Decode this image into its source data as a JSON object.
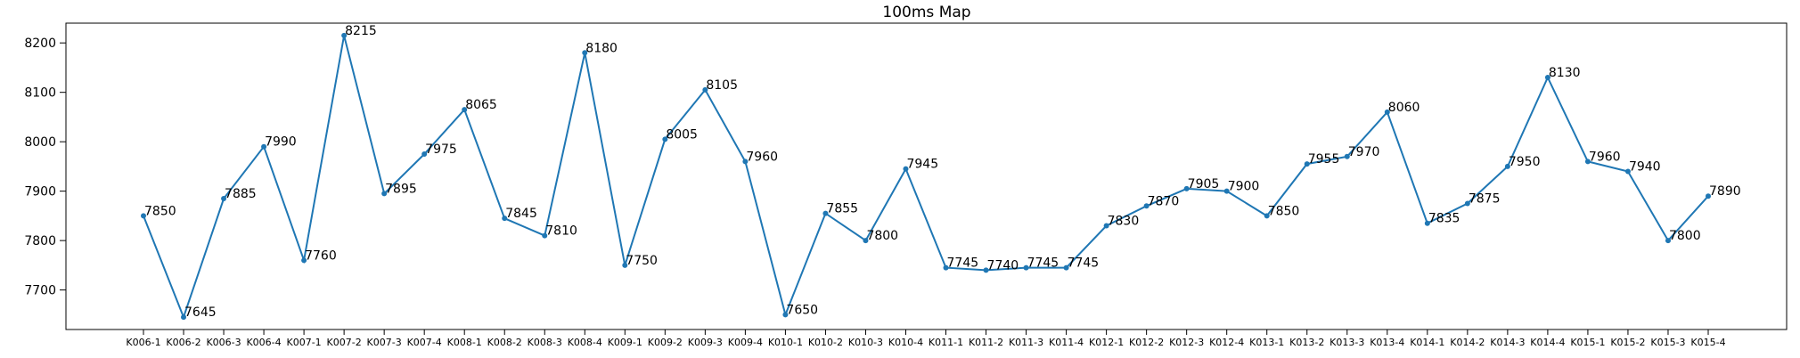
{
  "chart_data": {
    "type": "line",
    "title": "100ms Map",
    "xlabel": "",
    "ylabel": "",
    "ylim": [
      7620,
      8240
    ],
    "yticks": [
      7700,
      7800,
      7900,
      8000,
      8100,
      8200
    ],
    "grid": false,
    "legend": "none",
    "color": "#1f77b4",
    "categories": [
      "K006-1",
      "K006-2",
      "K006-3",
      "K006-4",
      "K007-1",
      "K007-2",
      "K007-3",
      "K007-4",
      "K008-1",
      "K008-2",
      "K008-3",
      "K008-4",
      "K009-1",
      "K009-2",
      "K009-3",
      "K009-4",
      "K010-1",
      "K010-2",
      "K010-3",
      "K010-4",
      "K011-1",
      "K011-2",
      "K011-3",
      "K011-4",
      "K012-1",
      "K012-2",
      "K012-3",
      "K012-4",
      "K013-1",
      "K013-2",
      "K013-3",
      "K013-4",
      "K014-1",
      "K014-2",
      "K014-3",
      "K014-4",
      "K015-1",
      "K015-2",
      "K015-3",
      "K015-4"
    ],
    "values": [
      7850,
      7645,
      7885,
      7990,
      7760,
      8215,
      7895,
      7975,
      8065,
      7845,
      7810,
      8180,
      7750,
      8005,
      8105,
      7960,
      7650,
      7855,
      7800,
      7945,
      7745,
      7740,
      7745,
      7745,
      7830,
      7870,
      7905,
      7900,
      7850,
      7955,
      7970,
      8060,
      7835,
      7875,
      7950,
      8130,
      7960,
      7940,
      7800,
      7890
    ]
  }
}
